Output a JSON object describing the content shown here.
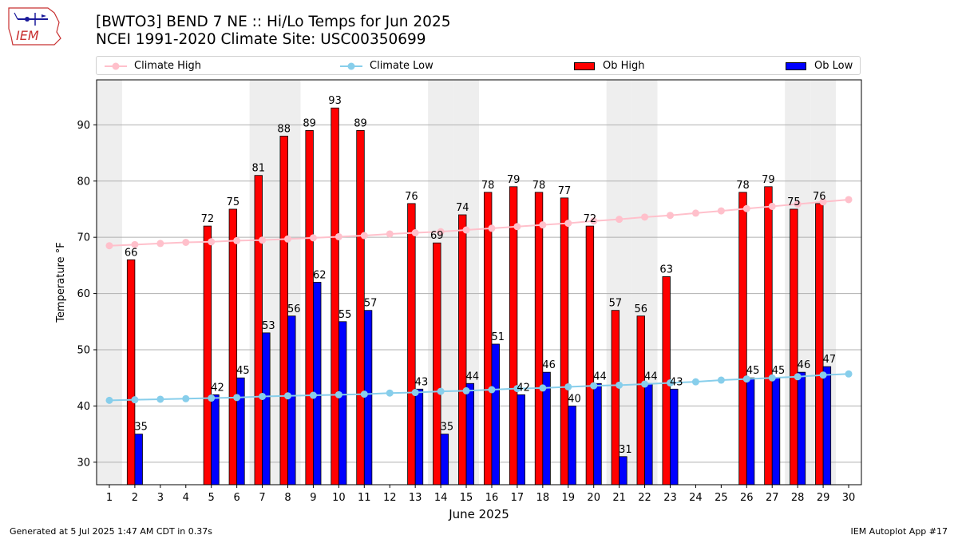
{
  "header": {
    "title_line1": "[BWTO3] BEND 7 NE :: Hi/Lo Temps for Jun 2025",
    "title_line2": "NCEI 1991-2020 Climate Site: USC00350699",
    "logo_text": "IEM"
  },
  "legend": {
    "climate_high": "Climate High",
    "climate_low": "Climate Low",
    "ob_high": "Ob High",
    "ob_low": "Ob Low"
  },
  "footer": {
    "generated": "Generated at 5 Jul 2025 1:47 AM CDT in 0.37s",
    "app": "IEM Autoplot App #17"
  },
  "colors": {
    "climate_high": "#ffc0cb",
    "climate_low": "#87ceeb",
    "ob_high": "#ff0000",
    "ob_low": "#0000ff",
    "weekend_band": "#eeeeee",
    "grid": "#b0b0b0"
  },
  "chart_data": {
    "type": "bar",
    "xlabel": "June 2025",
    "ylabel": "Temperature °F",
    "xlim": [
      0.5,
      30.5
    ],
    "ylim": [
      26,
      98
    ],
    "yticks": [
      30,
      40,
      50,
      60,
      70,
      80,
      90
    ],
    "days": [
      1,
      2,
      3,
      4,
      5,
      6,
      7,
      8,
      9,
      10,
      11,
      12,
      13,
      14,
      15,
      16,
      17,
      18,
      19,
      20,
      21,
      22,
      23,
      24,
      25,
      26,
      27,
      28,
      29,
      30
    ],
    "weekend_days": [
      1,
      7,
      8,
      14,
      15,
      21,
      22,
      28,
      29
    ],
    "ob_high": [
      null,
      66,
      null,
      null,
      72,
      75,
      81,
      88,
      89,
      93,
      89,
      null,
      76,
      69,
      74,
      78,
      79,
      78,
      77,
      72,
      57,
      56,
      63,
      null,
      null,
      78,
      79,
      75,
      76,
      null
    ],
    "ob_low": [
      null,
      35,
      null,
      null,
      42,
      45,
      53,
      56,
      62,
      55,
      57,
      null,
      43,
      35,
      44,
      51,
      42,
      46,
      40,
      44,
      31,
      44,
      43,
      null,
      null,
      45,
      45,
      46,
      47,
      null
    ],
    "climate_high": [
      68.5,
      68.7,
      68.9,
      69.1,
      69.2,
      69.4,
      69.5,
      69.7,
      69.9,
      70.1,
      70.3,
      70.6,
      70.8,
      71.0,
      71.3,
      71.6,
      71.9,
      72.2,
      72.5,
      72.9,
      73.2,
      73.6,
      73.9,
      74.3,
      74.7,
      75.1,
      75.5,
      75.9,
      76.3,
      76.7
    ],
    "climate_low": [
      41.0,
      41.1,
      41.2,
      41.3,
      41.4,
      41.5,
      41.7,
      41.8,
      41.9,
      42.0,
      42.1,
      42.3,
      42.4,
      42.6,
      42.7,
      42.9,
      43.1,
      43.2,
      43.4,
      43.6,
      43.7,
      43.9,
      44.1,
      44.3,
      44.6,
      44.8,
      45.0,
      45.2,
      45.5,
      45.7
    ]
  }
}
